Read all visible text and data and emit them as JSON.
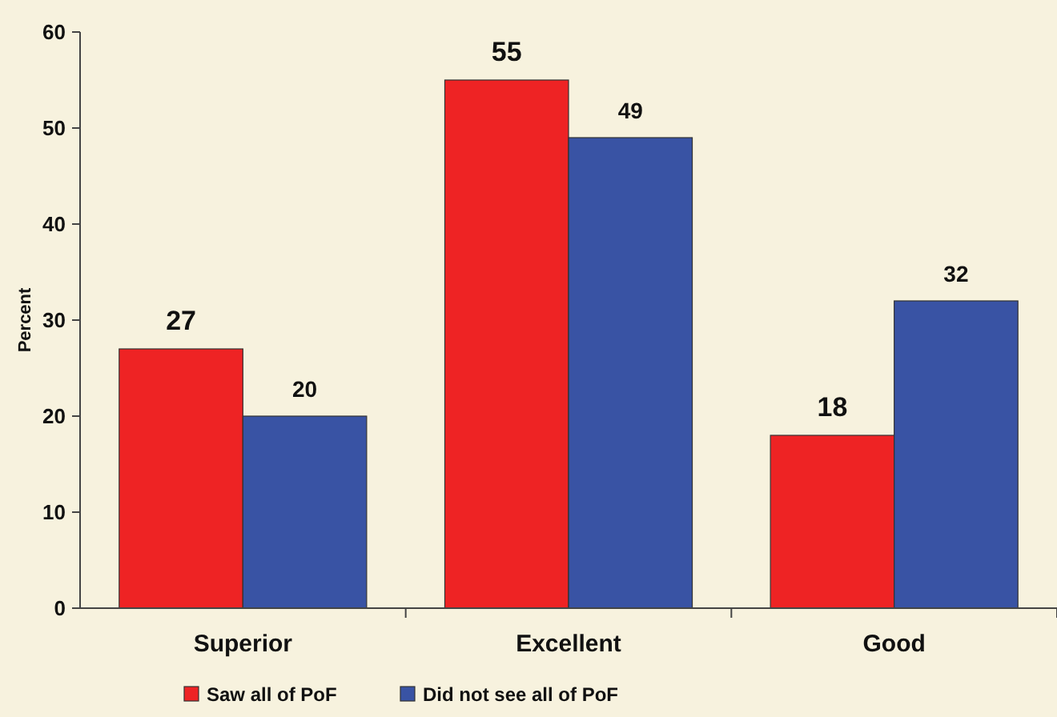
{
  "chart_data": {
    "type": "bar",
    "ylabel": "Percent",
    "categories": [
      "Superior",
      "Excellent",
      "Good"
    ],
    "series": [
      {
        "name": "Saw all of PoF",
        "color": "#ee2324",
        "values": [
          27,
          55,
          18
        ]
      },
      {
        "name": "Did not see all of PoF",
        "color": "#3953a4",
        "values": [
          20,
          49,
          32
        ]
      }
    ],
    "ylim": [
      0,
      60
    ],
    "yticks": [
      0,
      10,
      20,
      30,
      40,
      50,
      60
    ],
    "grid": false,
    "legend": "bottom",
    "data_labels": true
  }
}
